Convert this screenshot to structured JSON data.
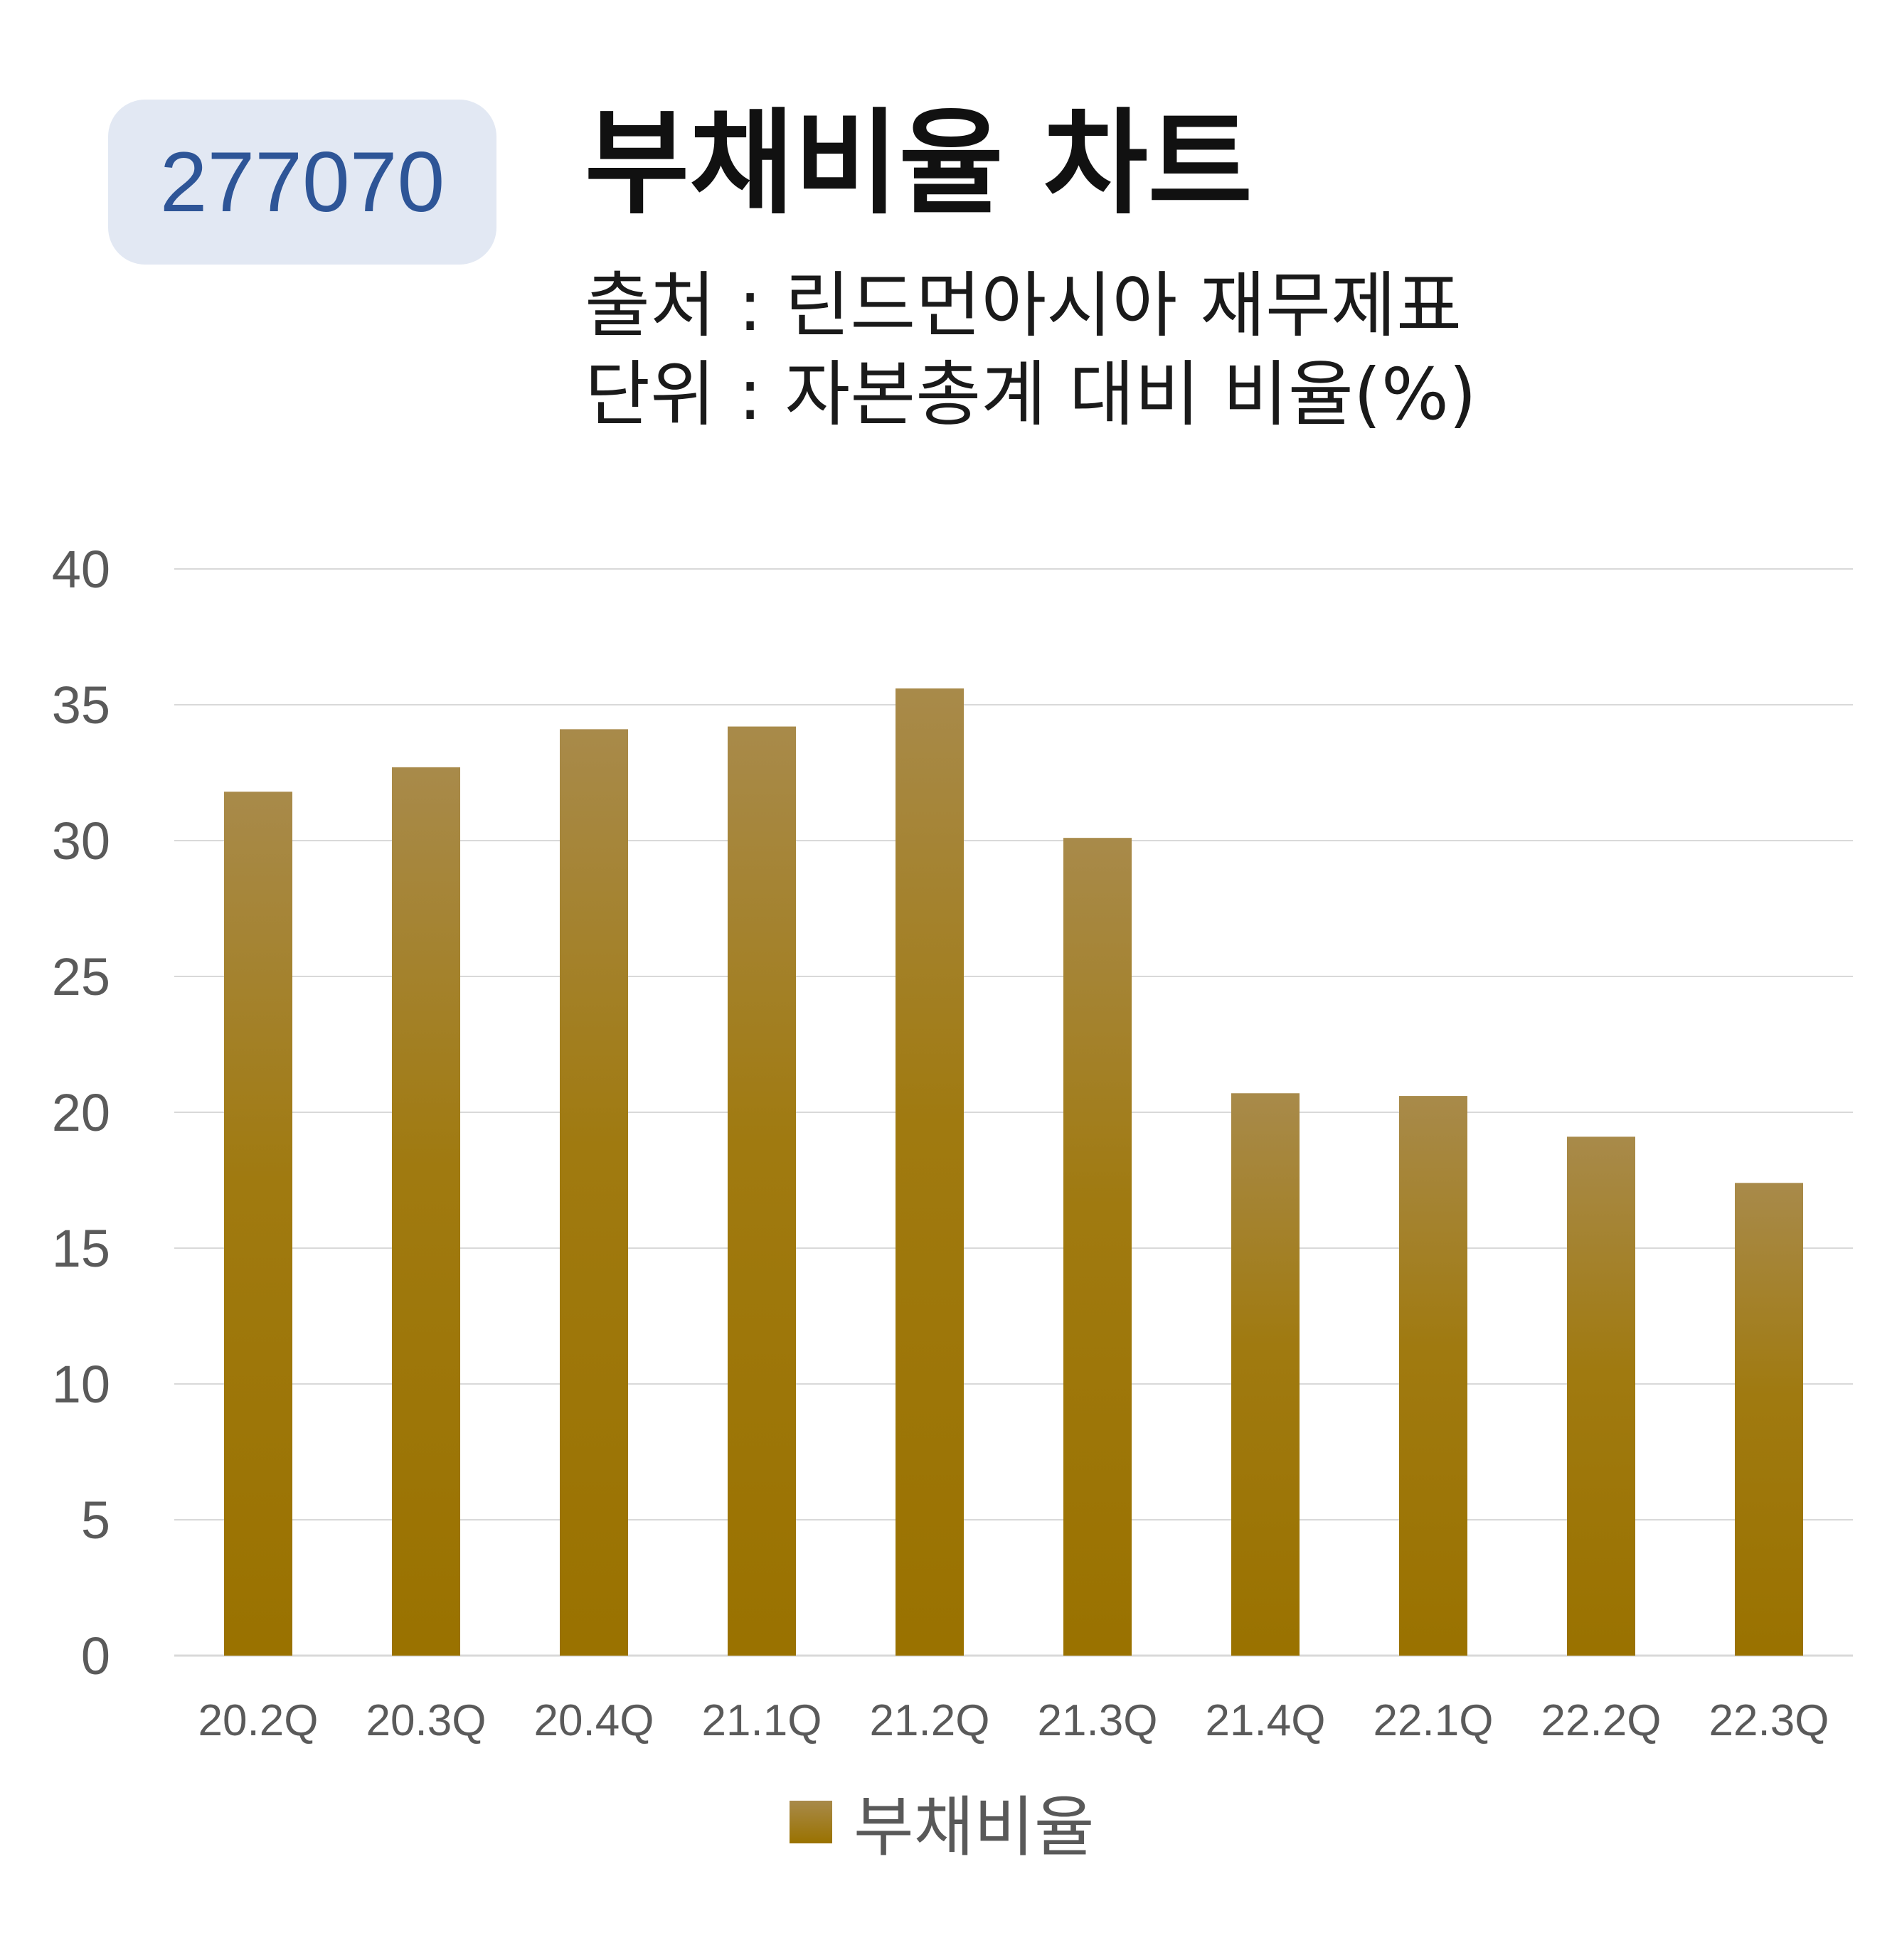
{
  "badge": "277070",
  "title": "부채비율 차트",
  "subtitle_source": "출처 : 린드먼아시아 재무제표",
  "subtitle_unit": "단위 : 자본총계 대비 비율(%)",
  "colors": {
    "bar_top": "#a88a4a",
    "bar_bottom": "#9a7200",
    "grid": "#d9d9d9",
    "badge_bg": "#e2e8f3",
    "badge_text": "#2e5597"
  },
  "chart_data": {
    "type": "bar",
    "categories": [
      "20.2Q",
      "20.3Q",
      "20.4Q",
      "21.1Q",
      "21.2Q",
      "21.3Q",
      "21.4Q",
      "22.1Q",
      "22.2Q",
      "22.3Q"
    ],
    "series": [
      {
        "name": "부채비율",
        "values": [
          31.8,
          32.7,
          34.1,
          34.2,
          35.6,
          30.1,
          20.7,
          20.6,
          19.1,
          17.4
        ]
      }
    ],
    "ylim": [
      0,
      40
    ],
    "yticks": [
      "0",
      "5",
      "10",
      "15",
      "20",
      "25",
      "30",
      "35",
      "40"
    ],
    "grid": true,
    "legend_position": "bottom"
  }
}
